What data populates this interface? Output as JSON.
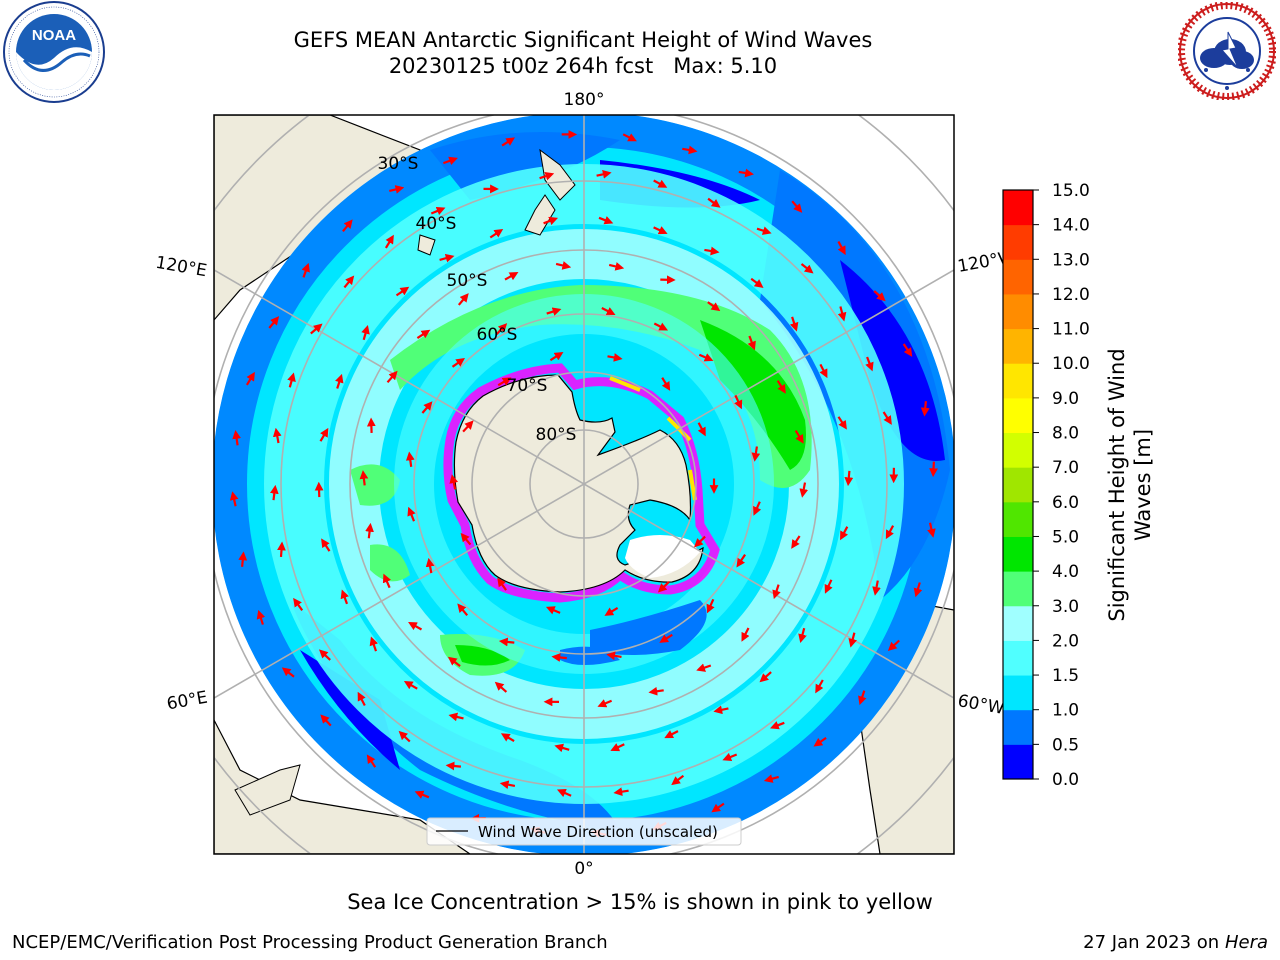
{
  "header": {
    "title_line1": "GEFS MEAN Antarctic Significant Height of Wind Waves",
    "title_line2": "20230125 t00z 264h fcst   Max: 5.10"
  },
  "logos": {
    "noaa": {
      "text": "NOAA",
      "ring_text": "NATIONAL OCEANIC AND ATMOSPHERIC ADMINISTRATION",
      "bottom_text": "U.S. DEPARTMENT OF COMMERCE"
    },
    "nws": {
      "ring_text": "NATIONAL WEATHER SERVICE"
    }
  },
  "map": {
    "projection": "south-polar-stereographic",
    "longitude_labels": {
      "top": "180°",
      "bottom": "0°",
      "left_upper": "120°E",
      "left_lower": "60°E",
      "right_upper": "120°W",
      "right_lower": "60°W"
    },
    "latitude_labels": [
      "30°S",
      "40°S",
      "50°S",
      "60°S",
      "70°S",
      "80°S"
    ],
    "legend_label": "Wind Wave Direction (unscaled)",
    "colors": {
      "land": "#eeebdc",
      "arrows": "#ff0000",
      "ice_edge": "#ff00ff",
      "gridlines": "#b0b0b0"
    }
  },
  "colorbar": {
    "label": "Significant Height of Wind Waves [m]",
    "label_line1": "Significant Height of Wind",
    "label_line2": "Waves [m]",
    "ticks": [
      "0.0",
      "0.5",
      "1.0",
      "1.5",
      "2.0",
      "3.0",
      "4.0",
      "5.0",
      "6.0",
      "7.0",
      "8.0",
      "9.0",
      "10.0",
      "11.0",
      "12.0",
      "13.0",
      "14.0",
      "15.0"
    ],
    "colors": [
      "#0000ff",
      "#0078ff",
      "#00e6ff",
      "#50ffff",
      "#a0ffff",
      "#50ff78",
      "#00e600",
      "#50e600",
      "#a0e600",
      "#d2ff00",
      "#ffff00",
      "#ffe600",
      "#ffb400",
      "#ff8c00",
      "#ff6400",
      "#ff3c00",
      "#ff0000"
    ]
  },
  "footer": {
    "note": "Sea Ice Concentration > 15% is shown in pink to yellow",
    "credit": "NCEP/EMC/Verification Post Processing Product Generation Branch",
    "date_prefix": "27 Jan 2023 on ",
    "machine": "Hera"
  }
}
